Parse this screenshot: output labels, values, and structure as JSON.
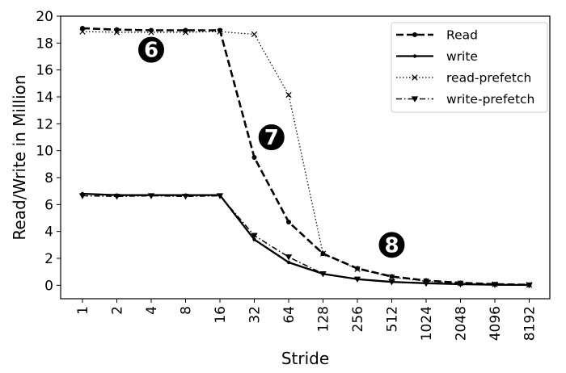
{
  "chart_data": {
    "type": "line",
    "xlabel": "Stride",
    "ylabel": "Read/Write in Million",
    "categories": [
      "1",
      "2",
      "4",
      "8",
      "16",
      "32",
      "64",
      "128",
      "256",
      "512",
      "1024",
      "2048",
      "4096",
      "8192"
    ],
    "ylim": [
      -1,
      20
    ],
    "yticks": [
      0,
      2,
      4,
      6,
      8,
      10,
      12,
      14,
      16,
      18,
      20
    ],
    "grid": false,
    "legend_position": "top-right",
    "series": [
      {
        "name": "Read",
        "style": "dashed",
        "marker": "dot",
        "values": [
          19.1,
          19.0,
          18.95,
          18.95,
          18.95,
          9.5,
          4.7,
          2.35,
          1.25,
          0.65,
          0.35,
          0.18,
          0.08,
          0.03
        ]
      },
      {
        "name": "write",
        "style": "solid",
        "marker": "star",
        "values": [
          6.8,
          6.7,
          6.7,
          6.7,
          6.7,
          3.4,
          1.7,
          0.85,
          0.45,
          0.25,
          0.15,
          0.08,
          0.04,
          0.02
        ]
      },
      {
        "name": "read-prefetch",
        "style": "dotted",
        "marker": "x",
        "values": [
          18.85,
          18.8,
          18.8,
          18.8,
          18.85,
          18.65,
          14.15,
          2.35,
          1.2,
          0.6,
          0.3,
          0.15,
          0.07,
          0.03
        ]
      },
      {
        "name": "write-prefetch",
        "style": "dashdot",
        "marker": "triangle-down",
        "values": [
          6.65,
          6.6,
          6.65,
          6.6,
          6.65,
          3.7,
          2.1,
          0.85,
          0.45,
          0.25,
          0.14,
          0.08,
          0.04,
          0.02
        ]
      }
    ],
    "annotations": [
      {
        "text": "6",
        "x_index": 2,
        "y": 17.5
      },
      {
        "text": "7",
        "x_index": 5.5,
        "y": 11.0
      },
      {
        "text": "8",
        "x_index": 9,
        "y": 3.0
      }
    ],
    "colors": {
      "line": "#000000",
      "badge": "#000000",
      "badge_text": "#ffffff"
    }
  }
}
